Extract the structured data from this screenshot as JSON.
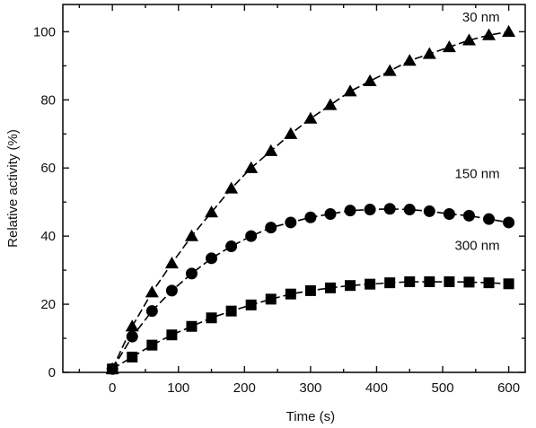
{
  "chart_data": {
    "type": "scatter",
    "title": "",
    "xlabel": "Time (s)",
    "ylabel": "Relative activity (%)",
    "xlim": [
      -75,
      625
    ],
    "ylim": [
      0,
      108
    ],
    "x_ticks": [
      0,
      100,
      200,
      300,
      400,
      500,
      600
    ],
    "y_ticks": [
      0,
      20,
      40,
      60,
      80,
      100
    ],
    "grid": false,
    "legend": "none",
    "series": [
      {
        "name": "30 nm",
        "marker": "triangle",
        "line": "dashed",
        "color": "#000000",
        "x": [
          0,
          30,
          60,
          90,
          120,
          150,
          180,
          210,
          240,
          270,
          300,
          330,
          360,
          390,
          420,
          450,
          480,
          510,
          540,
          570,
          600
        ],
        "y": [
          1,
          13.5,
          23.5,
          32,
          40,
          47,
          54,
          60,
          65,
          70,
          74.5,
          78.5,
          82.5,
          85.5,
          88.5,
          91.5,
          93.5,
          95.5,
          97.5,
          99,
          100
        ]
      },
      {
        "name": "150 nm",
        "marker": "circle",
        "line": "dashed",
        "color": "#000000",
        "x": [
          0,
          30,
          60,
          90,
          120,
          150,
          180,
          210,
          240,
          270,
          300,
          330,
          360,
          390,
          420,
          450,
          480,
          510,
          540,
          570,
          600
        ],
        "y": [
          1,
          10.5,
          18,
          24,
          29,
          33.5,
          37,
          40,
          42.5,
          44,
          45.5,
          46.5,
          47.5,
          47.8,
          48,
          47.8,
          47.3,
          46.5,
          46,
          45,
          44
        ]
      },
      {
        "name": "300 nm",
        "marker": "square",
        "line": "dashed",
        "color": "#000000",
        "x": [
          0,
          30,
          60,
          90,
          120,
          150,
          180,
          210,
          240,
          270,
          300,
          330,
          360,
          390,
          420,
          450,
          480,
          510,
          540,
          570,
          600
        ],
        "y": [
          1,
          4.5,
          8,
          11,
          13.5,
          16,
          18,
          19.8,
          21.5,
          23,
          24,
          24.8,
          25.5,
          25.9,
          26.3,
          26.6,
          26.6,
          26.6,
          26.5,
          26.3,
          26
        ]
      }
    ]
  }
}
